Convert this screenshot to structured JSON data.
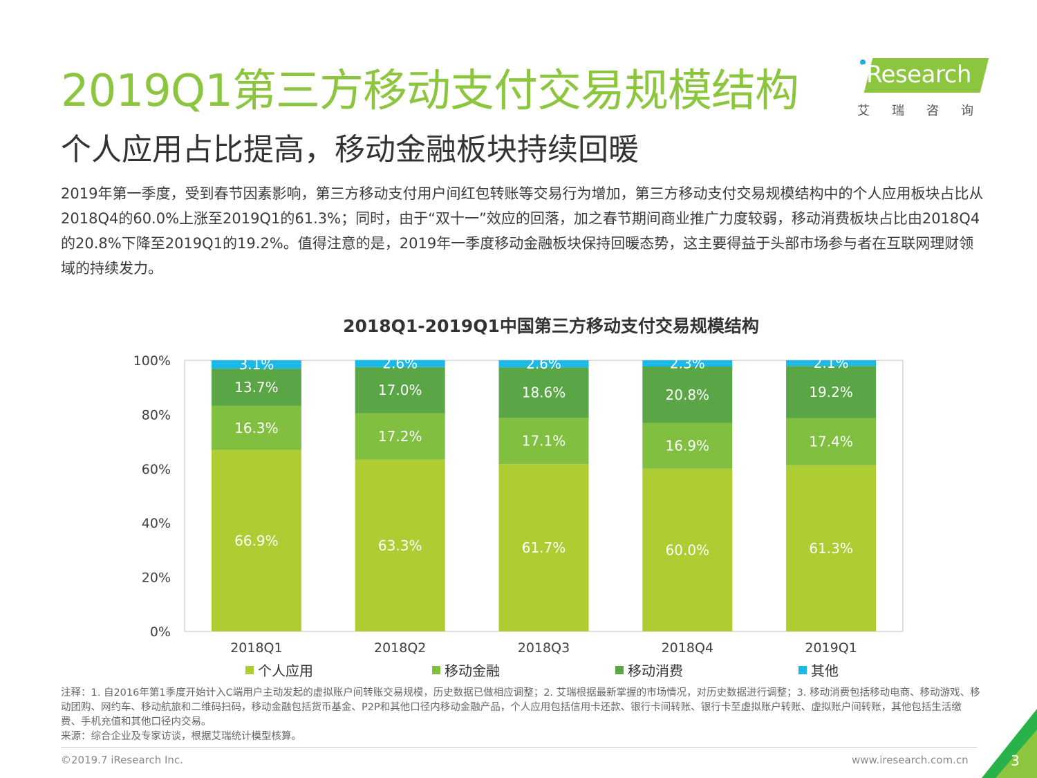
{
  "header": {
    "title": "2019Q1第三方移动支付交易规模结构",
    "subtitle": "个人应用占比提高，移动金融板块持续回暖",
    "paragraph": "2019年第一季度，受到春节因素影响，第三方移动支付用户间红包转账等交易行为增加，第三方移动支付交易规模结构中的个人应用板块占比从2018Q4的60.0%上涨至2019Q1的61.3%；同时，由于“双十一”效应的回落，加之春节期间商业推广力度较弱，移动消费板块占比由2018Q4的20.8%下降至2019Q1的19.2%。值得注意的是，2019年一季度移动金融板块保持回暖态势，这主要得益于头部市场参与者在互联网理财领域的持续发力。"
  },
  "logo": {
    "brand": "iResearch",
    "sub": "艾瑞咨询"
  },
  "colors": {
    "title_green": "#8cc63f",
    "personal": "#aecd33",
    "finance": "#80bf40",
    "consumption": "#5aa646",
    "other": "#1ab9e8"
  },
  "chart_data": {
    "type": "bar",
    "stacked": true,
    "title": "2018Q1-2019Q1中国第三方移动支付交易规模结构",
    "categories": [
      "2018Q1",
      "2018Q2",
      "2018Q3",
      "2018Q4",
      "2019Q1"
    ],
    "series": [
      {
        "name": "个人应用",
        "values": [
          66.9,
          63.3,
          61.7,
          60.0,
          61.3
        ],
        "labels": [
          "66.9%",
          "63.3%",
          "61.7%",
          "60.0%",
          "61.3%"
        ]
      },
      {
        "name": "移动金融",
        "values": [
          16.3,
          17.2,
          17.1,
          16.9,
          17.4
        ],
        "labels": [
          "16.3%",
          "17.2%",
          "17.1%",
          "16.9%",
          "17.4%"
        ]
      },
      {
        "name": "移动消费",
        "values": [
          13.7,
          17.0,
          18.6,
          20.8,
          19.2
        ],
        "labels": [
          "13.7%",
          "17.0%",
          "18.6%",
          "20.8%",
          "19.2%"
        ]
      },
      {
        "name": "其他",
        "values": [
          3.1,
          2.6,
          2.6,
          2.3,
          2.1
        ],
        "labels": [
          "3.1%",
          "2.6%",
          "2.6%",
          "2.3%",
          "2.1%"
        ]
      }
    ],
    "y_ticks": [
      "0%",
      "20%",
      "40%",
      "60%",
      "80%",
      "100%"
    ],
    "ylim": [
      0,
      100
    ],
    "legend_position": "bottom",
    "grid": false
  },
  "notes": {
    "note": "注释：1. 自2016年第1季度开始计入C端用户主动发起的虚拟账户间转账交易规模，历史数据已做相应调整；2. 艾瑞根据最新掌握的市场情况，对历史数据进行调整；3. 移动消费包括移动电商、移动游戏、移动团购、网约车、移动航旅和二维码扫码，移动金融包括货币基金、P2P和其他口径内移动金融产品，个人应用包括信用卡还款、银行卡间转账、银行卡至虚拟账户转账、虚拟账户间转账，其他包括生活缴费、手机充值和其他口径内交易。",
    "source": "来源：综合企业及专家访谈，根据艾瑞统计模型核算。"
  },
  "footer": {
    "copyright": "©2019.7 iResearch Inc.",
    "website": "www.iresearch.com.cn",
    "page": "3"
  }
}
